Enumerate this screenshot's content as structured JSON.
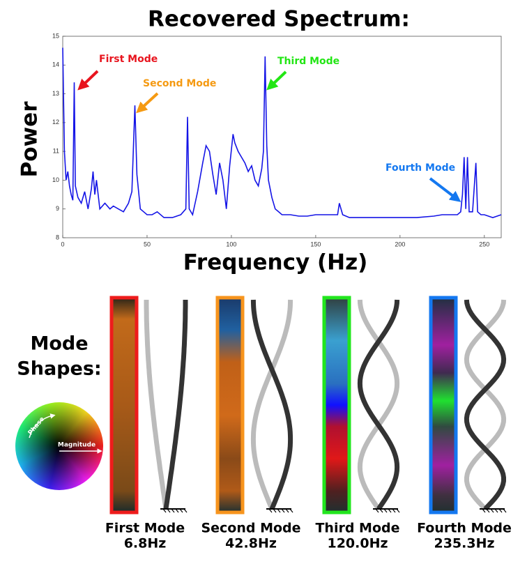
{
  "chart_data": {
    "type": "line",
    "title": "Recovered Spectrum:",
    "x_label": "Frequency (Hz)",
    "y_label": "Power",
    "x": [
      0,
      1,
      2,
      3,
      4,
      5,
      6,
      6.8,
      7.5,
      9,
      11,
      13,
      15,
      17,
      18,
      19,
      20,
      22,
      25,
      28,
      30,
      33,
      36,
      39,
      41,
      42.8,
      44,
      46,
      48,
      50,
      53,
      56,
      60,
      65,
      70,
      73,
      74,
      75,
      77,
      80,
      83,
      85,
      87,
      89,
      91,
      93,
      95,
      97,
      99,
      101,
      102,
      104,
      106,
      108,
      110,
      112,
      114,
      116,
      118,
      119,
      120,
      121,
      122,
      124,
      126,
      128,
      130,
      135,
      140,
      145,
      150,
      155,
      160,
      163,
      164,
      166,
      170,
      180,
      190,
      200,
      210,
      220,
      225,
      230,
      234,
      236,
      237,
      238,
      239,
      240,
      241,
      243,
      245,
      246,
      248,
      250,
      255,
      260
    ],
    "series": [
      {
        "color": "#1414e6",
        "values": [
          14.6,
          11,
          10,
          10.3,
          9.8,
          9.5,
          9.3,
          13.4,
          9.8,
          9.4,
          9.2,
          9.6,
          9.0,
          9.7,
          10.3,
          9.5,
          10.0,
          9.0,
          9.2,
          9.0,
          9.1,
          9.0,
          8.9,
          9.2,
          9.6,
          12.6,
          10.2,
          9.0,
          8.9,
          8.8,
          8.8,
          8.9,
          8.7,
          8.7,
          8.8,
          9.0,
          12.2,
          9.0,
          8.8,
          9.6,
          10.6,
          11.2,
          11.0,
          10.2,
          9.5,
          10.6,
          10.0,
          9.0,
          10.5,
          11.6,
          11.3,
          11.0,
          10.8,
          10.6,
          10.3,
          10.5,
          10.0,
          9.8,
          10.4,
          11.0,
          14.3,
          11.2,
          10.0,
          9.4,
          9.0,
          8.9,
          8.8,
          8.8,
          8.75,
          8.75,
          8.8,
          8.8,
          8.8,
          8.8,
          9.2,
          8.8,
          8.7,
          8.7,
          8.7,
          8.7,
          8.7,
          8.75,
          8.8,
          8.8,
          8.8,
          8.9,
          9.5,
          10.8,
          9.0,
          10.8,
          8.9,
          8.9,
          10.6,
          8.9,
          8.8,
          8.8,
          8.7,
          8.8
        ]
      }
    ],
    "xlim": [
      0,
      260
    ],
    "xticks": [
      0,
      50,
      100,
      150,
      200,
      250
    ],
    "ylim": [
      8,
      15
    ],
    "yticks": [
      8,
      9,
      10,
      11,
      12,
      13,
      14,
      15
    ],
    "annotations": [
      {
        "text": "First Mode",
        "color": "#e8141e"
      },
      {
        "text": "Second Mode",
        "color": "#f59a12"
      },
      {
        "text": "Third Mode",
        "color": "#22e614"
      },
      {
        "text": "Fourth Mode",
        "color": "#1478f0"
      }
    ]
  },
  "mode_shapes": {
    "label": [
      "Mode",
      "Shapes:"
    ],
    "wheel": {
      "phase": "Phase",
      "magnitude": "Magnitude"
    },
    "modes": [
      {
        "name": "First Mode",
        "frequency": "6.8Hz",
        "color": "#ee1c1c"
      },
      {
        "name": "Second Mode",
        "frequency": "42.8Hz",
        "color": "#f7941d"
      },
      {
        "name": "Third Mode",
        "frequency": "120.0Hz",
        "color": "#22e61e"
      },
      {
        "name": "Fourth Mode",
        "frequency": "235.3Hz",
        "color": "#1478f0"
      }
    ]
  }
}
